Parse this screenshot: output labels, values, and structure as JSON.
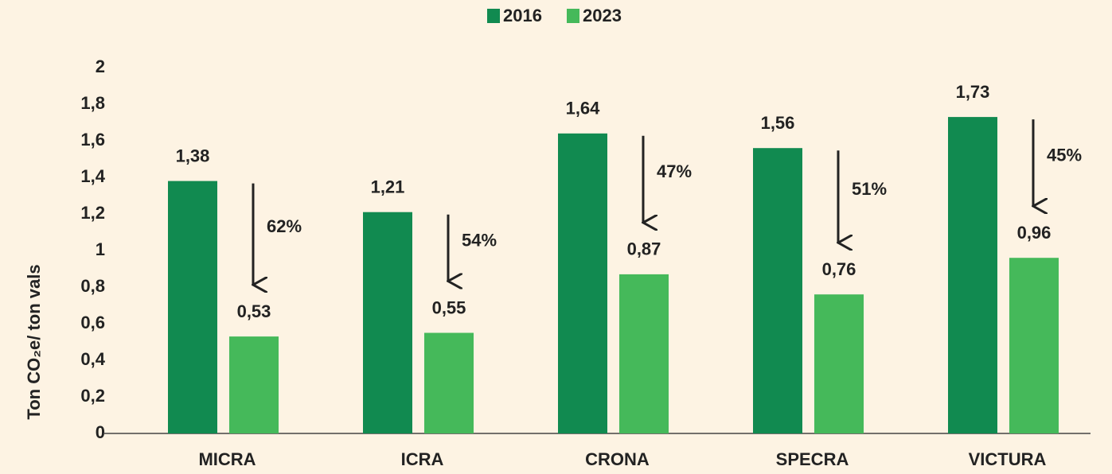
{
  "chart_data": {
    "type": "bar",
    "y_axis_label": "Ton CO₂e/ ton vals",
    "categories": [
      "MICRA",
      "ICRA",
      "CRONA",
      "SPECRA",
      "VICTURA"
    ],
    "series": [
      {
        "name": "2016",
        "color": "#118a50",
        "values": [
          1.38,
          1.21,
          1.64,
          1.56,
          1.73
        ],
        "value_labels": [
          "1,38",
          "1,21",
          "1,64",
          "1,56",
          "1,73"
        ]
      },
      {
        "name": "2023",
        "color": "#45b95a",
        "values": [
          0.53,
          0.55,
          0.87,
          0.76,
          0.96
        ],
        "value_labels": [
          "0,53",
          "0,55",
          "0,87",
          "0,76",
          "0,96"
        ]
      }
    ],
    "annotations": [
      "62%",
      "54%",
      "47%",
      "51%",
      "45%"
    ],
    "ylim": [
      0,
      2
    ],
    "yticks": [
      0,
      {
        "value": 0.2,
        "label": "0,2"
      },
      {
        "value": 0.4,
        "label": "0,4"
      },
      {
        "value": 0.6,
        "label": "0,6"
      },
      {
        "value": 0.8,
        "label": "0,8"
      },
      1,
      {
        "value": 1.2,
        "label": "1,2"
      },
      {
        "value": 1.4,
        "label": "1,4"
      },
      {
        "value": 1.6,
        "label": "1,6"
      },
      {
        "value": 1.8,
        "label": "1,8"
      },
      2
    ],
    "grid": false,
    "legend": "top"
  }
}
